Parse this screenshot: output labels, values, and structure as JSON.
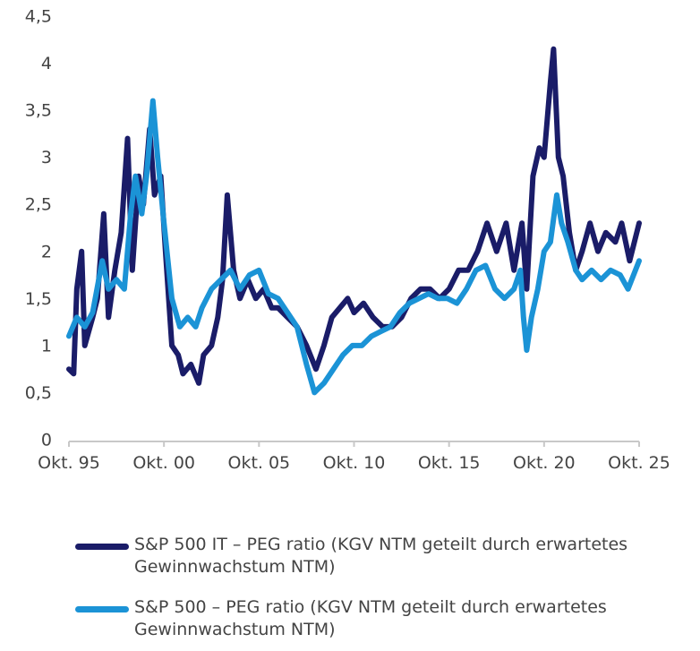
{
  "chart_data": {
    "type": "line",
    "title": "",
    "xlabel": "",
    "ylabel": "",
    "ylim": [
      0,
      4.5
    ],
    "xlim": [
      "1995-10",
      "2025-10"
    ],
    "yticks": [
      "0",
      "0,5",
      "1",
      "1,5",
      "2",
      "2,5",
      "3",
      "3,5",
      "4",
      "4,5"
    ],
    "ytick_values": [
      0,
      0.5,
      1,
      1.5,
      2,
      2.5,
      3,
      3.5,
      4,
      4.5
    ],
    "xticks": [
      "Okt. 95",
      "Okt. 00",
      "Okt. 05",
      "Okt. 10",
      "Okt. 15",
      "Okt. 20",
      "Okt. 25"
    ],
    "xtick_dates": [
      "1995-10",
      "2000-10",
      "2005-10",
      "2010-10",
      "2015-10",
      "2020-10",
      "2025-10"
    ],
    "grid": false,
    "legend": "bottom",
    "series": [
      {
        "name": "S&P 500 IT – PEG ratio (KGV NTM geteilt durch erwartetes Gewinnwachstum NTM)",
        "color": "#1a1c68",
        "points": [
          [
            "1995-10",
            0.75
          ],
          [
            "1996-01",
            0.7
          ],
          [
            "1996-03",
            1.6
          ],
          [
            "1996-06",
            2.0
          ],
          [
            "1996-08",
            1.0
          ],
          [
            "1997-01",
            1.3
          ],
          [
            "1997-04",
            1.5
          ],
          [
            "1997-08",
            2.4
          ],
          [
            "1997-11",
            1.3
          ],
          [
            "1998-03",
            1.8
          ],
          [
            "1998-07",
            2.2
          ],
          [
            "1998-11",
            3.2
          ],
          [
            "1999-02",
            1.8
          ],
          [
            "1999-06",
            2.8
          ],
          [
            "1999-09",
            2.5
          ],
          [
            "2000-01",
            3.3
          ],
          [
            "2000-04",
            2.6
          ],
          [
            "2000-08",
            2.8
          ],
          [
            "2000-11",
            2.0
          ],
          [
            "2001-03",
            1.0
          ],
          [
            "2001-07",
            0.9
          ],
          [
            "2001-10",
            0.7
          ],
          [
            "2002-03",
            0.8
          ],
          [
            "2002-08",
            0.6
          ],
          [
            "2002-11",
            0.9
          ],
          [
            "2003-04",
            1.0
          ],
          [
            "2003-08",
            1.3
          ],
          [
            "2003-11",
            1.7
          ],
          [
            "2004-02",
            2.6
          ],
          [
            "2004-06",
            1.8
          ],
          [
            "2004-10",
            1.5
          ],
          [
            "2005-03",
            1.7
          ],
          [
            "2005-08",
            1.5
          ],
          [
            "2006-01",
            1.6
          ],
          [
            "2006-06",
            1.4
          ],
          [
            "2006-10",
            1.4
          ],
          [
            "2007-04",
            1.3
          ],
          [
            "2007-10",
            1.2
          ],
          [
            "2008-04",
            1.0
          ],
          [
            "2008-10",
            0.75
          ],
          [
            "2009-03",
            1.0
          ],
          [
            "2009-08",
            1.3
          ],
          [
            "2010-01",
            1.4
          ],
          [
            "2010-06",
            1.5
          ],
          [
            "2010-10",
            1.35
          ],
          [
            "2011-04",
            1.45
          ],
          [
            "2011-10",
            1.3
          ],
          [
            "2012-04",
            1.2
          ],
          [
            "2012-10",
            1.2
          ],
          [
            "2013-04",
            1.3
          ],
          [
            "2013-10",
            1.5
          ],
          [
            "2014-04",
            1.6
          ],
          [
            "2014-10",
            1.6
          ],
          [
            "2015-04",
            1.5
          ],
          [
            "2015-10",
            1.6
          ],
          [
            "2016-04",
            1.8
          ],
          [
            "2016-10",
            1.8
          ],
          [
            "2017-04",
            2.0
          ],
          [
            "2017-10",
            2.3
          ],
          [
            "2018-04",
            2.0
          ],
          [
            "2018-10",
            2.3
          ],
          [
            "2019-03",
            1.8
          ],
          [
            "2019-08",
            2.3
          ],
          [
            "2019-11",
            1.6
          ],
          [
            "2020-03",
            2.8
          ],
          [
            "2020-07",
            3.1
          ],
          [
            "2020-10",
            3.0
          ],
          [
            "2021-02",
            3.8
          ],
          [
            "2021-04",
            4.15
          ],
          [
            "2021-07",
            3.0
          ],
          [
            "2021-10",
            2.8
          ],
          [
            "2022-02",
            2.2
          ],
          [
            "2022-06",
            1.8
          ],
          [
            "2022-10",
            2.0
          ],
          [
            "2023-03",
            2.3
          ],
          [
            "2023-08",
            2.0
          ],
          [
            "2024-01",
            2.2
          ],
          [
            "2024-07",
            2.1
          ],
          [
            "2024-11",
            2.3
          ],
          [
            "2025-04",
            1.9
          ],
          [
            "2025-10",
            2.3
          ]
        ]
      },
      {
        "name": "S&P 500 – PEG ratio (KGV NTM geteilt durch erwartetes Gewinnwachstum NTM)",
        "color": "#1b93d6",
        "points": [
          [
            "1995-10",
            1.1
          ],
          [
            "1996-03",
            1.3
          ],
          [
            "1996-08",
            1.2
          ],
          [
            "1997-01",
            1.35
          ],
          [
            "1997-07",
            1.9
          ],
          [
            "1997-11",
            1.6
          ],
          [
            "1998-04",
            1.7
          ],
          [
            "1998-09",
            1.6
          ],
          [
            "1999-01",
            2.4
          ],
          [
            "1999-04",
            2.8
          ],
          [
            "1999-08",
            2.4
          ],
          [
            "1999-11",
            2.8
          ],
          [
            "2000-03",
            3.6
          ],
          [
            "2000-06",
            3.0
          ],
          [
            "2000-10",
            2.3
          ],
          [
            "2001-03",
            1.5
          ],
          [
            "2001-08",
            1.2
          ],
          [
            "2002-01",
            1.3
          ],
          [
            "2002-06",
            1.2
          ],
          [
            "2002-10",
            1.4
          ],
          [
            "2003-04",
            1.6
          ],
          [
            "2003-10",
            1.7
          ],
          [
            "2004-04",
            1.8
          ],
          [
            "2004-10",
            1.6
          ],
          [
            "2005-04",
            1.75
          ],
          [
            "2005-10",
            1.8
          ],
          [
            "2006-04",
            1.55
          ],
          [
            "2006-10",
            1.5
          ],
          [
            "2007-04",
            1.35
          ],
          [
            "2007-10",
            1.2
          ],
          [
            "2008-04",
            0.8
          ],
          [
            "2008-09",
            0.5
          ],
          [
            "2009-03",
            0.6
          ],
          [
            "2009-09",
            0.75
          ],
          [
            "2010-03",
            0.9
          ],
          [
            "2010-09",
            1.0
          ],
          [
            "2011-03",
            1.0
          ],
          [
            "2011-09",
            1.1
          ],
          [
            "2012-03",
            1.15
          ],
          [
            "2012-09",
            1.2
          ],
          [
            "2013-03",
            1.35
          ],
          [
            "2013-09",
            1.45
          ],
          [
            "2014-03",
            1.5
          ],
          [
            "2014-09",
            1.55
          ],
          [
            "2015-03",
            1.5
          ],
          [
            "2015-09",
            1.5
          ],
          [
            "2016-03",
            1.45
          ],
          [
            "2016-09",
            1.6
          ],
          [
            "2017-03",
            1.8
          ],
          [
            "2017-09",
            1.85
          ],
          [
            "2018-03",
            1.6
          ],
          [
            "2018-09",
            1.5
          ],
          [
            "2019-03",
            1.6
          ],
          [
            "2019-07",
            1.8
          ],
          [
            "2019-09",
            1.3
          ],
          [
            "2019-11",
            0.95
          ],
          [
            "2020-02",
            1.3
          ],
          [
            "2020-06",
            1.6
          ],
          [
            "2020-10",
            2.0
          ],
          [
            "2021-02",
            2.1
          ],
          [
            "2021-06",
            2.6
          ],
          [
            "2021-09",
            2.3
          ],
          [
            "2022-01",
            2.1
          ],
          [
            "2022-06",
            1.8
          ],
          [
            "2022-10",
            1.7
          ],
          [
            "2023-04",
            1.8
          ],
          [
            "2023-10",
            1.7
          ],
          [
            "2024-04",
            1.8
          ],
          [
            "2024-10",
            1.75
          ],
          [
            "2025-03",
            1.6
          ],
          [
            "2025-10",
            1.9
          ]
        ]
      }
    ]
  }
}
